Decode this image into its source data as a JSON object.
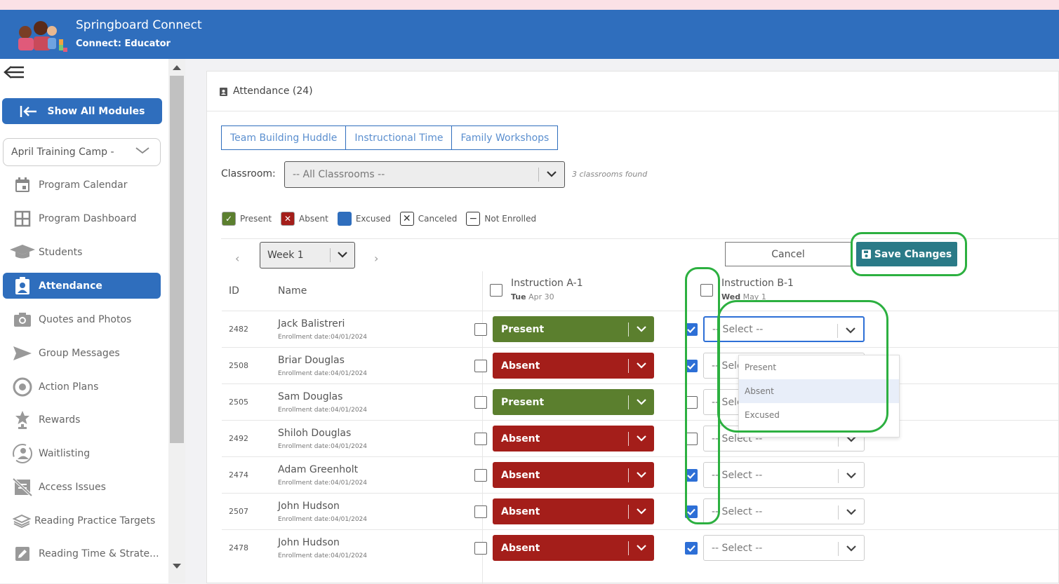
{
  "header": {
    "title": "Springboard Connect",
    "subtitle": "Connect: Educator"
  },
  "sidebar": {
    "show_all": "Show All Modules",
    "camp": "April Training Camp -",
    "items": [
      {
        "label": "Program Calendar",
        "icon": "calendar-icon"
      },
      {
        "label": "Program Dashboard",
        "icon": "dashboard-grid-icon"
      },
      {
        "label": "Students",
        "icon": "graduation-cap-icon"
      },
      {
        "label": "Attendance",
        "icon": "attendance-badge-icon",
        "active": true
      },
      {
        "label": "Quotes and Photos",
        "icon": "camera-icon"
      },
      {
        "label": "Group Messages",
        "icon": "send-icon"
      },
      {
        "label": "Action Plans",
        "icon": "target-icon"
      },
      {
        "label": "Rewards",
        "icon": "star-award-icon"
      },
      {
        "label": "Waitlisting",
        "icon": "person-clock-icon"
      },
      {
        "label": "Access Issues",
        "icon": "blocked-doc-icon"
      },
      {
        "label": "Reading Practice Targets",
        "icon": "book-icon"
      },
      {
        "label": "Reading Time & Strate...",
        "icon": "pencil-box-icon"
      }
    ]
  },
  "card": {
    "title": "Attendance (24)"
  },
  "sessions": [
    "Team Building Huddle",
    "Instructional Time",
    "Family Workshops"
  ],
  "classroom": {
    "label": "Classroom:",
    "value": "-- All Classrooms --",
    "found": "3 classrooms found"
  },
  "legend": [
    {
      "label": "Present",
      "color": "#5b7f2e",
      "mark": "✓"
    },
    {
      "label": "Absent",
      "color": "#a41e1a",
      "mark": "✕"
    },
    {
      "label": "Excused",
      "color": "#2f6ebd",
      "mark": ""
    },
    {
      "label": "Canceled",
      "color": "#ffffff",
      "mark": "✕"
    },
    {
      "label": "Not Enrolled",
      "color": "#ffffff",
      "mark": "−"
    }
  ],
  "week": {
    "value": "Week 1"
  },
  "buttons": {
    "cancel": "Cancel",
    "save": "Save Changes"
  },
  "columns": {
    "id": "ID",
    "name": "Name",
    "a": {
      "title": "Instruction A-1",
      "day": "Tue",
      "date": "Apr 30"
    },
    "b": {
      "title": "Instruction B-1",
      "day": "Wed",
      "date": "May 1"
    }
  },
  "select_placeholder": "-- Select --",
  "dropdown_options": [
    "Present",
    "Absent",
    "Excused"
  ],
  "rows": [
    {
      "id": "2482",
      "name": "Jack Balistreri",
      "enrollment": "Enrollment date:04/01/2024",
      "a_status": "Present",
      "b_checked": true
    },
    {
      "id": "2508",
      "name": "Briar Douglas",
      "enrollment": "Enrollment date:04/01/2024",
      "a_status": "Absent",
      "b_checked": true
    },
    {
      "id": "2505",
      "name": "Sam Douglas",
      "enrollment": "Enrollment date:04/01/2024",
      "a_status": "Present",
      "b_checked": false
    },
    {
      "id": "2492",
      "name": "Shiloh Douglas",
      "enrollment": "Enrollment date:04/01/2024",
      "a_status": "Absent",
      "b_checked": false
    },
    {
      "id": "2474",
      "name": "Adam Greenholt",
      "enrollment": "Enrollment date:04/01/2024",
      "a_status": "Absent",
      "b_checked": true
    },
    {
      "id": "2507",
      "name": "John Hudson",
      "enrollment": "Enrollment date:04/01/2024",
      "a_status": "Absent",
      "b_checked": true
    },
    {
      "id": "2478",
      "name": "John Hudson",
      "enrollment": "Enrollment date:04/01/2024",
      "a_status": "Absent",
      "b_checked": true
    }
  ]
}
